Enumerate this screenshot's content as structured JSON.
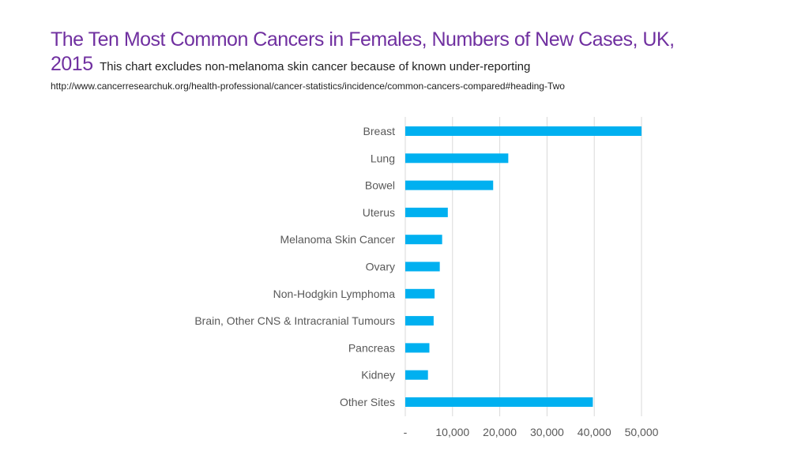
{
  "header": {
    "title_line1": "The Ten Most Common Cancers in Females, Numbers of New Cases, UK,",
    "title_year": "2015",
    "subtitle": "This chart excludes non-melanoma skin cancer because of known under-reporting",
    "source_url": "http://www.cancerresearchuk.org/health-professional/cancer-statistics/incidence/common-cancers-compared#heading-Two"
  },
  "colors": {
    "title": "#7030a0",
    "bar": "#00b0f0",
    "grid": "#d9d9d9",
    "axis_text": "#595959"
  },
  "chart_data": {
    "type": "bar",
    "orientation": "horizontal",
    "categories": [
      "Breast",
      "Lung",
      "Bowel",
      "Uterus",
      "Melanoma Skin Cancer",
      "Ovary",
      "Non-Hodgkin Lymphoma",
      "Brain, Other CNS & Intracranial Tumours",
      "Pancreas",
      "Kidney",
      "Other Sites"
    ],
    "values": [
      50000,
      21800,
      18600,
      9000,
      7800,
      7300,
      6200,
      6000,
      5100,
      4800,
      39700
    ],
    "xlim": [
      0,
      50000
    ],
    "xticks": [
      0,
      10000,
      20000,
      30000,
      40000,
      50000
    ],
    "xtick_labels": [
      "-",
      "10,000",
      "20,000",
      "30,000",
      "40,000",
      "50,000"
    ],
    "grid": true,
    "legend": "none"
  }
}
